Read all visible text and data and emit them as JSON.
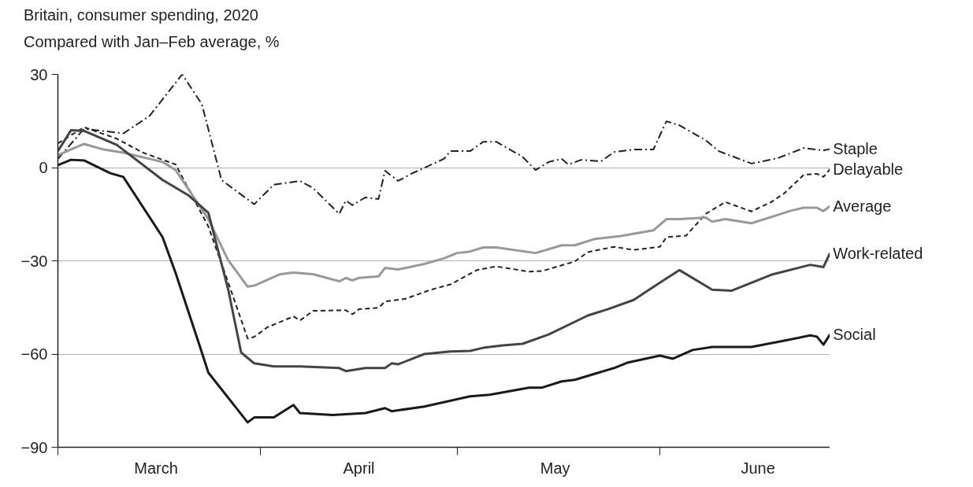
{
  "chart_data": {
    "type": "line",
    "title": "Britain, consumer spending, 2020",
    "subtitle": "Compared with Jan–Feb average, %",
    "xlim": [
      "2020-03-01",
      "2020-06-27"
    ],
    "xticks": [
      {
        "value": "2020-03-01",
        "label": null
      },
      {
        "value": "2020-03-16",
        "label": "March"
      },
      {
        "value": "2020-04-01",
        "label": null
      },
      {
        "value": "2020-04-16",
        "label": "April"
      },
      {
        "value": "2020-05-01",
        "label": null
      },
      {
        "value": "2020-05-16",
        "label": "May"
      },
      {
        "value": "2020-06-01",
        "label": null
      },
      {
        "value": "2020-06-16",
        "label": "June"
      }
    ],
    "ylim": [
      -90,
      30
    ],
    "yticks": [
      {
        "value": -90,
        "label": "−90"
      },
      {
        "value": -60,
        "label": "−60"
      },
      {
        "value": -30,
        "label": "−30"
      },
      0,
      30
    ],
    "grid": "y",
    "series": [
      {
        "name": "Staple",
        "color": "#222222",
        "line_style": "dashdot",
        "x": [
          "2020-03-01",
          "2020-03-05",
          "2020-03-11",
          "2020-03-15",
          "2020-03-20",
          "2020-03-23",
          "2020-03-26",
          "2020-03-31",
          "2020-04-03",
          "2020-04-07",
          "2020-04-09",
          "2020-04-13",
          "2020-04-14",
          "2020-04-15",
          "2020-04-17",
          "2020-04-19",
          "2020-04-20",
          "2020-04-22",
          "2020-04-24",
          "2020-04-29",
          "2020-04-30",
          "2020-05-03",
          "2020-05-05",
          "2020-05-07",
          "2020-05-11",
          "2020-05-13",
          "2020-05-15",
          "2020-05-17",
          "2020-05-18",
          "2020-05-20",
          "2020-05-23",
          "2020-05-25",
          "2020-05-28",
          "2020-05-31",
          "2020-06-02",
          "2020-06-04",
          "2020-06-08",
          "2020-06-10",
          "2020-06-15",
          "2020-06-19",
          "2020-06-23",
          "2020-06-26",
          "2020-06-27"
        ],
        "values": [
          2.8,
          12.5,
          11,
          16.6,
          30,
          20.4,
          -4,
          -11.8,
          -5.5,
          -4.3,
          -6.6,
          -14.9,
          -10.6,
          -12.1,
          -9.6,
          -10.1,
          -1,
          -4.3,
          -2,
          2.8,
          5.3,
          5.3,
          8.3,
          8.3,
          3.5,
          -0.8,
          1.8,
          2.8,
          1,
          2.5,
          2,
          5,
          5.8,
          5.8,
          14.9,
          13.6,
          8.8,
          5.3,
          1.3,
          3,
          6.3,
          5.5,
          6
        ]
      },
      {
        "name": "Delayable",
        "color": "#222222",
        "line_style": "dashed",
        "x": [
          "2020-03-01",
          "2020-03-05",
          "2020-03-10",
          "2020-03-14",
          "2020-03-19",
          "2020-03-24",
          "2020-03-27",
          "2020-03-30",
          "2020-03-31",
          "2020-04-02",
          "2020-04-06",
          "2020-04-07",
          "2020-04-09",
          "2020-04-14",
          "2020-04-15",
          "2020-04-16",
          "2020-04-19",
          "2020-04-20",
          "2020-04-23",
          "2020-04-27",
          "2020-04-30",
          "2020-05-04",
          "2020-05-07",
          "2020-05-12",
          "2020-05-14",
          "2020-05-19",
          "2020-05-21",
          "2020-05-25",
          "2020-05-28",
          "2020-06-01",
          "2020-06-02",
          "2020-06-05",
          "2020-06-08",
          "2020-06-11",
          "2020-06-15",
          "2020-06-18",
          "2020-06-20",
          "2020-06-23",
          "2020-06-25",
          "2020-06-26",
          "2020-06-27"
        ],
        "values": [
          7.8,
          13,
          9.3,
          4.8,
          1,
          -19,
          -36.8,
          -55,
          -54.5,
          -51.4,
          -47.9,
          -49.2,
          -46.1,
          -45.9,
          -47.2,
          -45.6,
          -45.1,
          -43.1,
          -42.3,
          -39.3,
          -37.6,
          -33,
          -31.8,
          -33.5,
          -33.3,
          -30.2,
          -27.2,
          -25.5,
          -26.5,
          -25.5,
          -22.4,
          -21.9,
          -14.9,
          -11.1,
          -14.1,
          -11.1,
          -8.3,
          -2.3,
          -2,
          -3,
          -0.5
        ]
      },
      {
        "name": "Average",
        "color": "#999999",
        "line_style": "solid",
        "x": [
          "2020-03-01",
          "2020-03-05",
          "2020-03-08",
          "2020-03-11",
          "2020-03-17",
          "2020-03-19",
          "2020-03-24",
          "2020-03-27",
          "2020-03-30",
          "2020-03-31",
          "2020-04-04",
          "2020-04-06",
          "2020-04-09",
          "2020-04-13",
          "2020-04-14",
          "2020-04-15",
          "2020-04-16",
          "2020-04-19",
          "2020-04-20",
          "2020-04-22",
          "2020-04-26",
          "2020-04-29",
          "2020-05-01",
          "2020-05-03",
          "2020-05-05",
          "2020-05-07",
          "2020-05-13",
          "2020-05-17",
          "2020-05-19",
          "2020-05-22",
          "2020-05-26",
          "2020-05-31",
          "2020-06-02",
          "2020-06-04",
          "2020-06-08",
          "2020-06-09",
          "2020-06-11",
          "2020-06-15",
          "2020-06-18",
          "2020-06-21",
          "2020-06-23",
          "2020-06-25",
          "2020-06-26",
          "2020-06-27"
        ],
        "values": [
          4,
          7.6,
          5.8,
          4.8,
          1.8,
          -0.8,
          -16.6,
          -29.7,
          -38.3,
          -38,
          -34.3,
          -33.8,
          -34.3,
          -36.6,
          -35.5,
          -36.3,
          -35.5,
          -35,
          -32.3,
          -32.8,
          -31,
          -29.2,
          -27.5,
          -27,
          -25.7,
          -25.7,
          -27.5,
          -25,
          -25,
          -23,
          -22,
          -20.2,
          -16.6,
          -16.6,
          -16.1,
          -17.4,
          -16.6,
          -17.9,
          -15.9,
          -13.9,
          -12.9,
          -12.9,
          -14,
          -12.4
        ]
      },
      {
        "name": "Work-related",
        "color": "#444444",
        "line_style": "solid",
        "x": [
          "2020-03-01",
          "2020-03-03",
          "2020-03-05",
          "2020-03-10",
          "2020-03-17",
          "2020-03-21",
          "2020-03-24",
          "2020-03-27",
          "2020-03-29",
          "2020-03-31",
          "2020-04-03",
          "2020-04-07",
          "2020-04-13",
          "2020-04-14",
          "2020-04-17",
          "2020-04-20",
          "2020-04-21",
          "2020-04-22",
          "2020-04-26",
          "2020-04-30",
          "2020-05-03",
          "2020-05-05",
          "2020-05-08",
          "2020-05-11",
          "2020-05-15",
          "2020-05-21",
          "2020-05-24",
          "2020-05-28",
          "2020-06-01",
          "2020-06-04",
          "2020-06-09",
          "2020-06-12",
          "2020-06-18",
          "2020-06-23",
          "2020-06-24",
          "2020-06-26",
          "2020-06-27"
        ],
        "values": [
          5.3,
          12,
          11.8,
          7.3,
          -4,
          -9,
          -14.6,
          -39,
          -59.5,
          -63,
          -64,
          -64,
          -64.5,
          -65.5,
          -64.5,
          -64.5,
          -63,
          -63.3,
          -60,
          -59.2,
          -59,
          -58,
          -57.2,
          -56.7,
          -53.7,
          -47.6,
          -45.6,
          -42.6,
          -37,
          -33,
          -39.3,
          -39.6,
          -34.5,
          -31.8,
          -31.3,
          -32,
          -27.5
        ]
      },
      {
        "name": "Social",
        "color": "#1a1a1a",
        "line_style": "solid",
        "x": [
          "2020-03-01",
          "2020-03-03",
          "2020-03-05",
          "2020-03-09",
          "2020-03-11",
          "2020-03-17",
          "2020-03-19",
          "2020-03-23",
          "2020-03-24",
          "2020-03-30",
          "2020-03-31",
          "2020-04-03",
          "2020-04-06",
          "2020-04-07",
          "2020-04-12",
          "2020-04-17",
          "2020-04-20",
          "2020-04-21",
          "2020-04-26",
          "2020-05-03",
          "2020-05-06",
          "2020-05-12",
          "2020-05-14",
          "2020-05-17",
          "2020-05-19",
          "2020-05-25",
          "2020-05-27",
          "2020-06-01",
          "2020-06-03",
          "2020-06-06",
          "2020-06-09",
          "2020-06-15",
          "2020-06-20",
          "2020-06-24",
          "2020-06-25",
          "2020-06-26",
          "2020-06-27"
        ],
        "values": [
          0.8,
          2.5,
          2.3,
          -1.8,
          -3,
          -22.4,
          -34,
          -59.5,
          -66,
          -82,
          -80.4,
          -80.4,
          -76.4,
          -79,
          -79.6,
          -79,
          -77.4,
          -78.4,
          -76.9,
          -73.6,
          -73.1,
          -70.8,
          -70.8,
          -68.8,
          -68.3,
          -64.5,
          -62.8,
          -60.5,
          -61.5,
          -58.7,
          -57.7,
          -57.7,
          -55.7,
          -54,
          -54.4,
          -57,
          -53.7
        ]
      }
    ]
  }
}
